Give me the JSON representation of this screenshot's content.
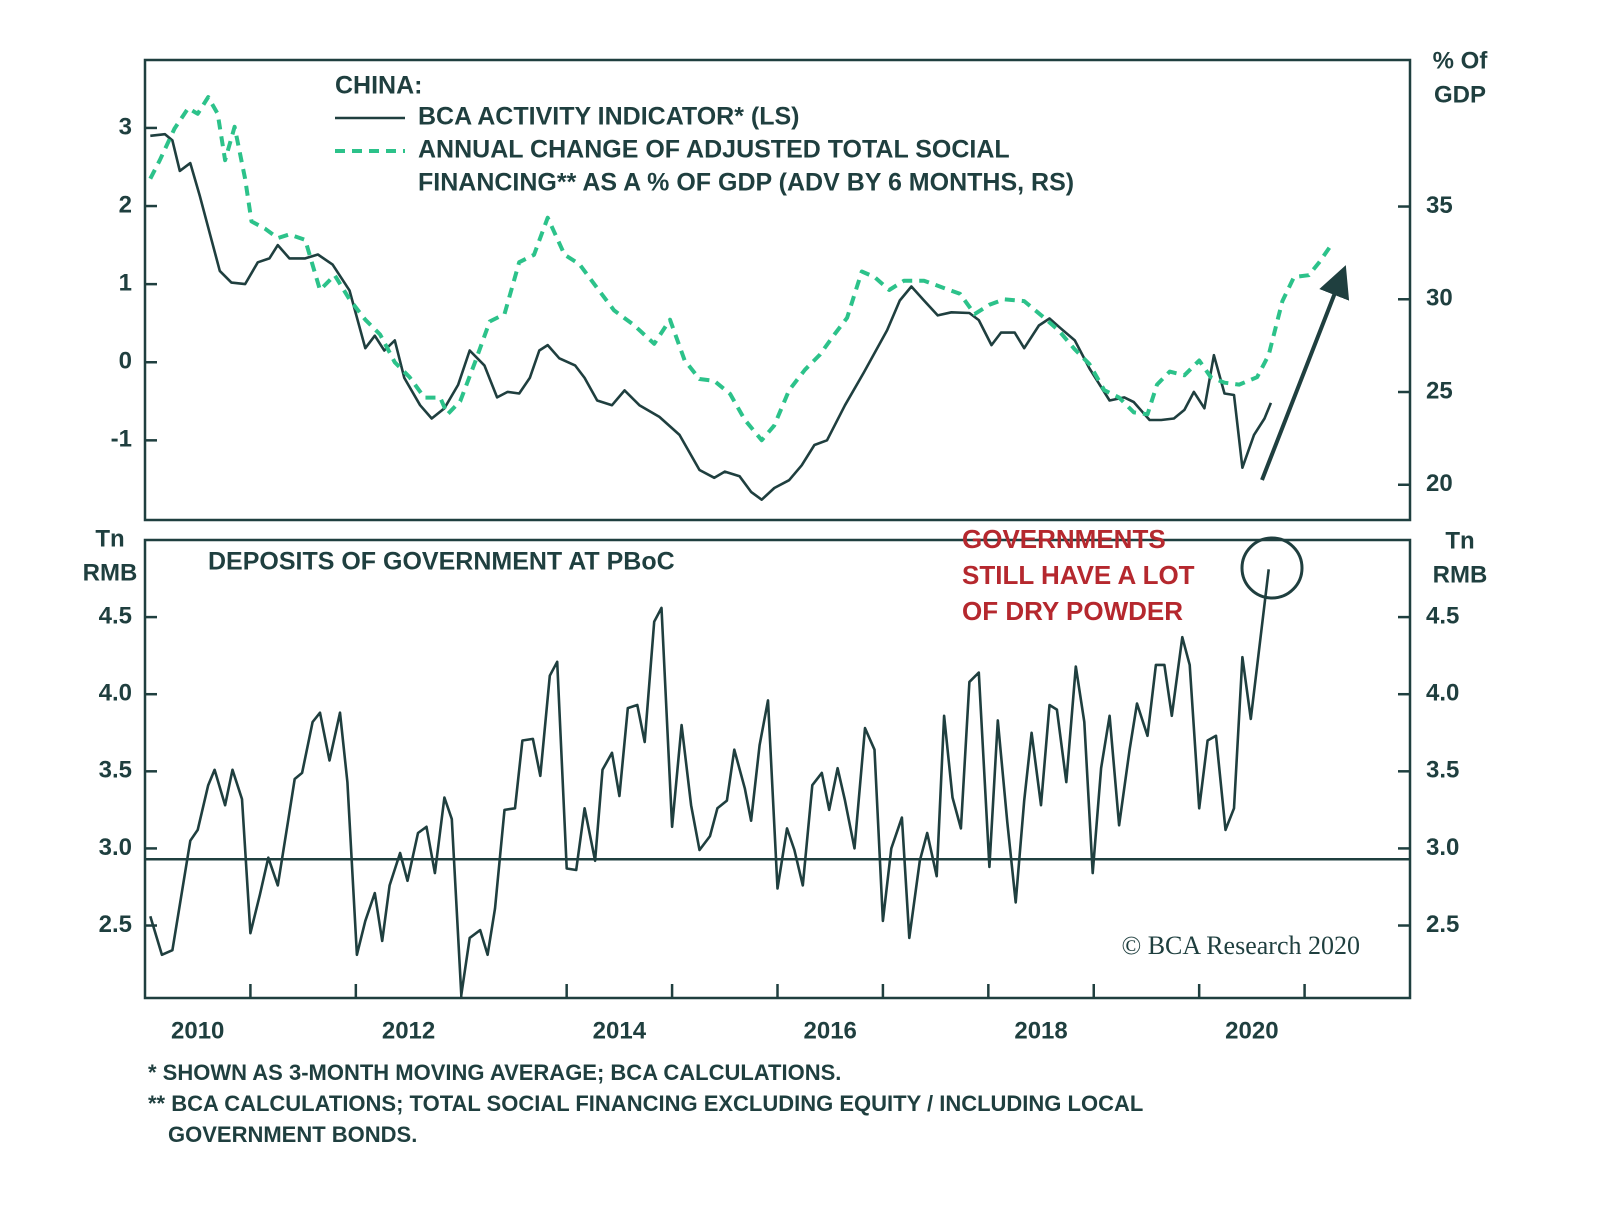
{
  "chart_data": [
    {
      "type": "line",
      "legend_title": "CHINA:",
      "xlim": [
        2010,
        2022
      ],
      "ylim": [
        -2.02,
        3.87
      ],
      "yticks": [
        -1,
        0,
        1,
        2,
        3
      ],
      "y2lim": [
        18.1,
        42.9
      ],
      "y2ticks": [
        20,
        25,
        30,
        35
      ],
      "y2_label": [
        "% Of",
        "GDP"
      ],
      "series": [
        {
          "name": [
            "BCA ACTIVITY INDICATOR* (LS)"
          ],
          "color": "#1f3f3f",
          "dashed": false,
          "x": [
            2010.05,
            2010.19,
            2010.26,
            2010.33,
            2010.43,
            2010.52,
            2010.62,
            2010.71,
            2010.82,
            2010.95,
            2011.07,
            2011.18,
            2011.26,
            2011.37,
            2011.52,
            2011.64,
            2011.78,
            2011.94,
            2012.09,
            2012.18,
            2012.27,
            2012.37,
            2012.46,
            2012.61,
            2012.72,
            2012.84,
            2012.97,
            2013.08,
            2013.22,
            2013.34,
            2013.44,
            2013.55,
            2013.65,
            2013.74,
            2013.82,
            2013.93,
            2014.08,
            2014.17,
            2014.29,
            2014.43,
            2014.55,
            2014.69,
            2014.88,
            2015.07,
            2015.26,
            2015.4,
            2015.5,
            2015.64,
            2015.75,
            2015.85,
            2015.97,
            2016.11,
            2016.23,
            2016.35,
            2016.47,
            2016.64,
            2016.82,
            2017.04,
            2017.16,
            2017.27,
            2017.39,
            2017.52,
            2017.65,
            2017.82,
            2017.91,
            2018.03,
            2018.12,
            2018.25,
            2018.34,
            2018.48,
            2018.58,
            2018.69,
            2018.82,
            2018.96,
            2019.15,
            2019.29,
            2019.38,
            2019.53,
            2019.64,
            2019.76,
            2019.86,
            2019.95,
            2020.05,
            2020.14,
            2020.24,
            2020.33,
            2020.41,
            2020.52,
            2020.62,
            2020.68
          ],
          "values": [
            2.9,
            2.92,
            2.84,
            2.45,
            2.55,
            2.13,
            1.62,
            1.17,
            1.02,
            1.0,
            1.28,
            1.33,
            1.5,
            1.33,
            1.33,
            1.38,
            1.25,
            0.92,
            0.18,
            0.34,
            0.15,
            0.28,
            -0.2,
            -0.55,
            -0.72,
            -0.59,
            -0.29,
            0.15,
            -0.04,
            -0.45,
            -0.38,
            -0.4,
            -0.2,
            0.15,
            0.22,
            0.05,
            -0.04,
            -0.2,
            -0.49,
            -0.55,
            -0.36,
            -0.55,
            -0.7,
            -0.93,
            -1.38,
            -1.48,
            -1.4,
            -1.46,
            -1.66,
            -1.76,
            -1.61,
            -1.51,
            -1.32,
            -1.06,
            -1.0,
            -0.55,
            -0.13,
            0.41,
            0.79,
            0.97,
            0.79,
            0.6,
            0.64,
            0.63,
            0.54,
            0.22,
            0.38,
            0.38,
            0.18,
            0.47,
            0.56,
            0.43,
            0.28,
            -0.08,
            -0.49,
            -0.45,
            -0.51,
            -0.74,
            -0.74,
            -0.72,
            -0.61,
            -0.38,
            -0.59,
            0.09,
            -0.4,
            -0.42,
            -1.35,
            -0.93,
            -0.72,
            -0.52
          ]
        },
        {
          "name": [
            "ANNUAL CHANGE OF ADJUSTED TOTAL SOCIAL",
            "FINANCING** AS A % OF GDP (ADV BY 6 MONTHS, RS)"
          ],
          "color": "#2cc28a",
          "dashed": true,
          "axis": "y2",
          "x": [
            2010.05,
            2010.14,
            2010.28,
            2010.41,
            2010.5,
            2010.6,
            2010.69,
            2010.76,
            2010.85,
            2010.95,
            2011.01,
            2011.14,
            2011.26,
            2011.37,
            2011.52,
            2011.66,
            2011.8,
            2011.94,
            2012.09,
            2012.23,
            2012.37,
            2012.51,
            2012.65,
            2012.8,
            2012.87,
            2012.99,
            2013.13,
            2013.27,
            2013.41,
            2013.55,
            2013.69,
            2013.82,
            2013.98,
            2014.12,
            2014.29,
            2014.45,
            2014.64,
            2014.83,
            2014.98,
            2015.12,
            2015.26,
            2015.4,
            2015.55,
            2015.69,
            2015.85,
            2015.97,
            2016.11,
            2016.26,
            2016.4,
            2016.54,
            2016.66,
            2016.8,
            2016.92,
            2017.06,
            2017.2,
            2017.39,
            2017.58,
            2017.73,
            2017.87,
            2018.01,
            2018.15,
            2018.34,
            2018.53,
            2018.67,
            2018.82,
            2018.96,
            2019.1,
            2019.24,
            2019.38,
            2019.51,
            2019.6,
            2019.72,
            2019.86,
            2020.0,
            2020.11,
            2020.24,
            2020.38,
            2020.55,
            2020.66,
            2020.79,
            2020.9,
            2021.04,
            2021.14,
            2021.25
          ],
          "values": [
            36.5,
            37.5,
            39.2,
            40.3,
            40.0,
            40.9,
            40.0,
            37.5,
            39.3,
            36.5,
            34.2,
            33.8,
            33.3,
            33.5,
            33.2,
            30.5,
            31.3,
            30.0,
            28.9,
            28.1,
            26.6,
            25.8,
            24.7,
            24.7,
            23.8,
            24.5,
            26.6,
            28.8,
            29.2,
            32.0,
            32.4,
            34.4,
            32.4,
            31.9,
            30.6,
            29.4,
            28.6,
            27.6,
            28.9,
            26.7,
            25.7,
            25.6,
            24.9,
            23.5,
            22.4,
            23.2,
            25.1,
            26.2,
            27.0,
            28.1,
            29.0,
            31.5,
            31.2,
            30.5,
            31.0,
            31.0,
            30.6,
            30.3,
            29.2,
            29.7,
            30.0,
            29.9,
            29.0,
            28.3,
            27.3,
            26.5,
            25.1,
            24.7,
            23.9,
            23.8,
            25.4,
            26.1,
            25.9,
            26.7,
            25.8,
            25.5,
            25.4,
            25.8,
            27.0,
            29.9,
            31.2,
            31.3,
            32.0,
            32.9
          ]
        }
      ]
    },
    {
      "type": "line",
      "title": "DEPOSITS OF GOVERNMENT AT PBoC",
      "xlim": [
        2010,
        2022
      ],
      "xticks": [
        {
          "value": 2010.5,
          "label": "2010"
        },
        {
          "value": 2012.5,
          "label": "2012"
        },
        {
          "value": 2014.5,
          "label": "2014"
        },
        {
          "value": 2016.5,
          "label": "2016"
        },
        {
          "value": 2018.5,
          "label": "2018"
        },
        {
          "value": 2020.5,
          "label": "2020"
        }
      ],
      "xminor": [
        2011,
        2012,
        2013,
        2014,
        2015,
        2016,
        2017,
        2018,
        2019,
        2020,
        2021
      ],
      "ylim": [
        2.03,
        5.0
      ],
      "yticks": [
        2.5,
        {
          "value": 3,
          "label": "3.0"
        },
        3.5,
        {
          "value": 4,
          "label": "4.0"
        },
        4.5
      ],
      "y2lim": [
        2.03,
        5.0
      ],
      "y2ticks": [
        2.5,
        {
          "value": 3,
          "label": "3.0"
        },
        3.5,
        {
          "value": 4,
          "label": "4.0"
        },
        4.5
      ],
      "y_label": [
        "Tn",
        "RMB"
      ],
      "y2_label": [
        "Tn",
        "RMB"
      ],
      "hline": 2.93,
      "annotation": [
        "GOVERNMENTS",
        "STILL HAVE A LOT",
        "OF DRY POWDER"
      ],
      "series": [
        {
          "color": "#1f3f3f",
          "x": [
            2010.05,
            2010.16,
            2010.26,
            2010.43,
            2010.5,
            2010.6,
            2010.66,
            2010.76,
            2010.83,
            2010.92,
            2011.0,
            2011.09,
            2011.17,
            2011.26,
            2011.36,
            2011.42,
            2011.49,
            2011.59,
            2011.66,
            2011.75,
            2011.85,
            2011.92,
            2012.01,
            2012.09,
            2012.18,
            2012.25,
            2012.32,
            2012.42,
            2012.49,
            2012.59,
            2012.67,
            2012.75,
            2012.84,
            2012.91,
            2013.0,
            2013.08,
            2013.18,
            2013.25,
            2013.32,
            2013.41,
            2013.51,
            2013.58,
            2013.68,
            2013.75,
            2013.84,
            2013.91,
            2014.0,
            2014.09,
            2014.17,
            2014.27,
            2014.34,
            2014.43,
            2014.5,
            2014.58,
            2014.67,
            2014.74,
            2014.83,
            2014.9,
            2015.0,
            2015.09,
            2015.18,
            2015.26,
            2015.36,
            2015.43,
            2015.52,
            2015.59,
            2015.69,
            2015.75,
            2015.83,
            2015.91,
            2016.0,
            2016.09,
            2016.16,
            2016.24,
            2016.33,
            2016.42,
            2016.49,
            2016.57,
            2016.64,
            2016.73,
            2016.83,
            2016.92,
            2017.0,
            2017.08,
            2017.18,
            2017.25,
            2017.35,
            2017.42,
            2017.51,
            2017.58,
            2017.66,
            2017.74,
            2017.82,
            2017.91,
            2018.01,
            2018.09,
            2018.18,
            2018.26,
            2018.34,
            2018.41,
            2018.5,
            2018.58,
            2018.65,
            2018.74,
            2018.83,
            2018.91,
            2018.99,
            2019.07,
            2019.15,
            2019.24,
            2019.34,
            2019.41,
            2019.51,
            2019.59,
            2019.67,
            2019.74,
            2019.84,
            2019.91,
            2020.0,
            2020.08,
            2020.16,
            2020.25,
            2020.33,
            2020.41,
            2020.49,
            2020.66
          ],
          "values": [
            2.56,
            2.31,
            2.34,
            3.05,
            3.12,
            3.41,
            3.51,
            3.28,
            3.51,
            3.32,
            2.45,
            2.7,
            2.94,
            2.76,
            3.19,
            3.45,
            3.49,
            3.82,
            3.88,
            3.57,
            3.88,
            3.43,
            2.31,
            2.53,
            2.71,
            2.4,
            2.76,
            2.97,
            2.79,
            3.1,
            3.14,
            2.84,
            3.33,
            3.19,
            2.05,
            2.42,
            2.47,
            2.31,
            2.61,
            3.25,
            3.26,
            3.7,
            3.71,
            3.47,
            4.12,
            4.21,
            2.87,
            2.86,
            3.26,
            2.92,
            3.51,
            3.62,
            3.34,
            3.91,
            3.93,
            3.69,
            4.47,
            4.56,
            3.14,
            3.8,
            3.28,
            2.99,
            3.08,
            3.26,
            3.31,
            3.64,
            3.39,
            3.18,
            3.67,
            3.96,
            2.74,
            3.13,
            2.99,
            2.76,
            3.41,
            3.49,
            3.25,
            3.52,
            3.31,
            3.0,
            3.78,
            3.64,
            2.53,
            3.0,
            3.2,
            2.42,
            2.92,
            3.1,
            2.82,
            3.86,
            3.33,
            3.13,
            4.08,
            4.14,
            2.88,
            3.83,
            3.17,
            2.65,
            3.31,
            3.75,
            3.28,
            3.93,
            3.9,
            3.43,
            4.18,
            3.82,
            2.84,
            3.52,
            3.86,
            3.15,
            3.64,
            3.94,
            3.73,
            4.19,
            4.19,
            3.86,
            4.37,
            4.19,
            3.26,
            3.7,
            3.73,
            3.12,
            3.26,
            4.24,
            3.84,
            4.81
          ]
        }
      ]
    }
  ],
  "footnotes": [
    [
      "* SHOWN AS 3-MONTH MOVING AVERAGE; BCA CALCULATIONS."
    ],
    [
      "** BCA CALCULATIONS; TOTAL SOCIAL FINANCING EXCLUDING EQUITY / INCLUDING LOCAL",
      "GOVERNMENT BONDS."
    ]
  ],
  "credit": "© BCA Research 2020"
}
